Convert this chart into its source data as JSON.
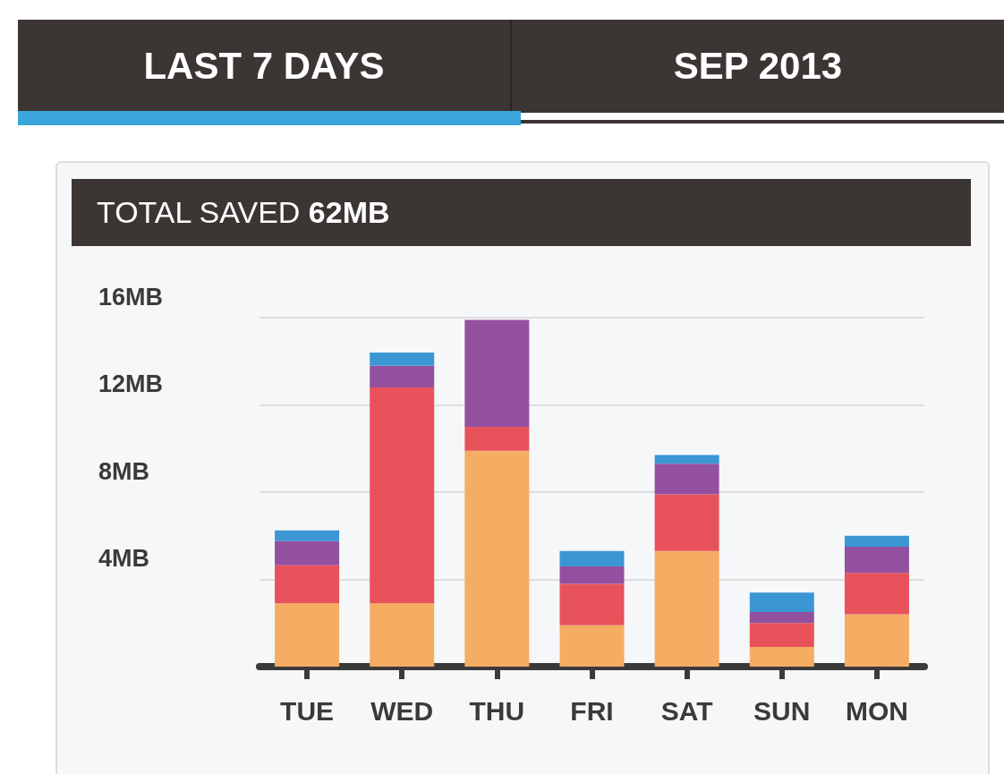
{
  "chart_data": {
    "type": "bar",
    "title": "TOTAL SAVED 62MB",
    "annotations": [
      "LAST 7 DAYS",
      "SEP 2013"
    ],
    "categories": [
      "TUE",
      "WED",
      "THU",
      "FRI",
      "SAT",
      "SUN",
      "MON"
    ],
    "stacked": true,
    "series": [
      {
        "color": "#f4ad62",
        "values": [
          2.9,
          2.9,
          9.9,
          1.9,
          5.3,
          0.9,
          2.4
        ]
      },
      {
        "color": "#e8525a",
        "values": [
          1.75,
          9.9,
          1.1,
          1.9,
          2.6,
          1.1,
          1.9
        ]
      },
      {
        "color": "#93509f",
        "values": [
          1.1,
          1.0,
          4.9,
          0.8,
          1.4,
          0.5,
          1.2
        ]
      },
      {
        "color": "#3b97d3",
        "values": [
          0.5,
          0.6,
          0,
          0.7,
          0.4,
          0.9,
          0.5
        ]
      }
    ],
    "ylim": [
      0,
      16
    ],
    "yticks": [
      {
        "value": 0,
        "label": null
      },
      {
        "value": 4,
        "label": "4MB"
      },
      {
        "value": 8,
        "label": "8MB"
      },
      {
        "value": 12,
        "label": "12MB"
      },
      {
        "value": 16,
        "label": "16MB"
      }
    ],
    "grid": "y"
  }
}
